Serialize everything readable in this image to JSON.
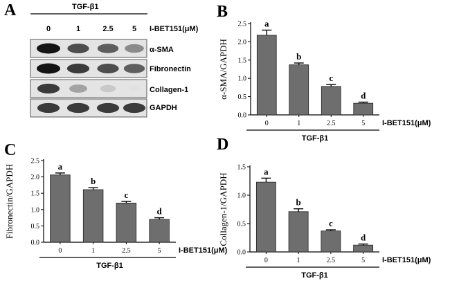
{
  "panels": {
    "a": "A",
    "b": "B",
    "c": "C",
    "d": "D"
  },
  "blot": {
    "treatment_label": "TGF-β1",
    "doses": [
      "0",
      "1",
      "2.5",
      "5"
    ],
    "dose_unit_label": "I-BET151(μM)",
    "proteins": [
      "α-SMA",
      "Fibronectin",
      "Collagen-1",
      "GAPDH"
    ],
    "band_intensity": [
      [
        1.0,
        0.85,
        0.8,
        0.65
      ],
      [
        1.0,
        0.9,
        0.85,
        0.8
      ],
      [
        0.9,
        0.55,
        0.35,
        0.05
      ],
      [
        0.9,
        0.9,
        0.9,
        0.9
      ]
    ]
  },
  "chart_data": [
    {
      "panel": "B",
      "type": "bar",
      "categories": [
        "0",
        "1",
        "2.5",
        "5"
      ],
      "values": [
        2.18,
        1.37,
        0.78,
        0.32
      ],
      "errors": [
        0.14,
        0.05,
        0.05,
        0.03
      ],
      "significance": [
        "a",
        "b",
        "c",
        "d"
      ],
      "ylabel": "α-SMA/GAPDH",
      "xlabel": "I-BET151(μM)",
      "group_label": "TGF-β1",
      "ylim": [
        0,
        2.5
      ],
      "yticks": [
        "0.0",
        "0.5",
        "1.0",
        "1.5",
        "2.0",
        "2.5"
      ],
      "bar_color": "#6e6e6e"
    },
    {
      "panel": "C",
      "type": "bar",
      "categories": [
        "0",
        "1",
        "2.5",
        "5"
      ],
      "values": [
        2.06,
        1.61,
        1.2,
        0.7
      ],
      "errors": [
        0.06,
        0.06,
        0.05,
        0.05
      ],
      "significance": [
        "a",
        "b",
        "c",
        "d"
      ],
      "ylabel": "Fibronectin/GAPDH",
      "xlabel": "I-BET151(μM)",
      "group_label": "TGF-β1",
      "ylim": [
        0,
        2.5
      ],
      "yticks": [
        "0.0",
        "0.5",
        "1.0",
        "1.5",
        "2.0",
        "2.5"
      ],
      "bar_color": "#6e6e6e"
    },
    {
      "panel": "D",
      "type": "bar",
      "categories": [
        "0",
        "1",
        "2.5",
        "5"
      ],
      "values": [
        1.23,
        0.71,
        0.37,
        0.12
      ],
      "errors": [
        0.07,
        0.05,
        0.02,
        0.02
      ],
      "significance": [
        "a",
        "b",
        "c",
        "d"
      ],
      "ylabel": "Collagen-1/GAPDH",
      "xlabel": "I-BET151(μM)",
      "group_label": "TGF-β1",
      "ylim": [
        0,
        1.5
      ],
      "yticks": [
        "0.0",
        "0.5",
        "1.0",
        "1.5"
      ],
      "bar_color": "#6e6e6e"
    }
  ]
}
